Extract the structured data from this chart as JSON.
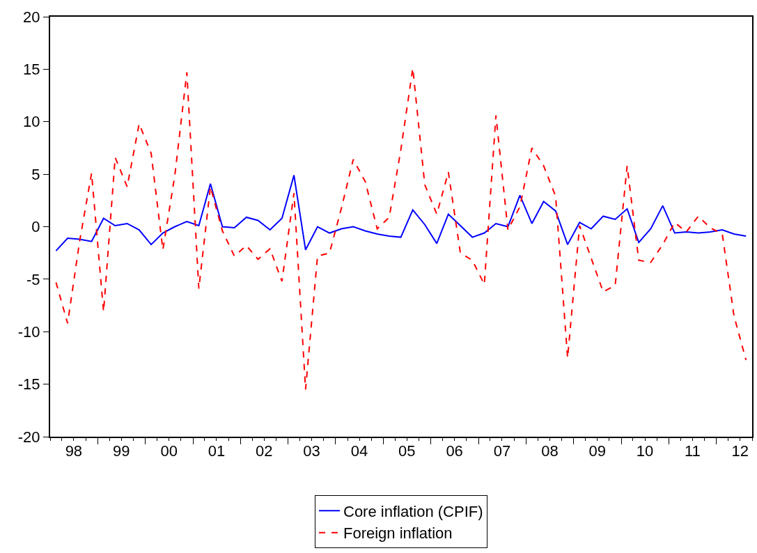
{
  "chart_data": {
    "type": "line",
    "x": [
      "1998-02-15",
      "1998-05-15",
      "1998-08-15",
      "1998-11-15",
      "1999-02-15",
      "1999-05-15",
      "1999-08-15",
      "1999-11-15",
      "2000-02-15",
      "2000-05-15",
      "2000-08-15",
      "2000-11-15",
      "2001-02-15",
      "2001-05-15",
      "2001-08-15",
      "2001-11-15",
      "2002-02-15",
      "2002-05-15",
      "2002-08-15",
      "2002-11-15",
      "2003-02-15",
      "2003-05-15",
      "2003-08-15",
      "2003-11-15",
      "2004-02-15",
      "2004-05-15",
      "2004-08-15",
      "2004-11-15",
      "2005-02-15",
      "2005-05-15",
      "2005-08-15",
      "2005-11-15",
      "2006-02-15",
      "2006-05-15",
      "2006-08-15",
      "2006-11-15",
      "2007-02-15",
      "2007-05-15",
      "2007-08-15",
      "2007-11-15",
      "2008-02-15",
      "2008-05-15",
      "2008-08-15",
      "2008-11-15",
      "2009-02-15",
      "2009-05-15",
      "2009-08-15",
      "2009-11-15",
      "2010-02-15",
      "2010-05-15",
      "2010-08-15",
      "2010-11-15",
      "2011-02-15",
      "2011-05-15",
      "2011-08-15",
      "2011-11-15",
      "2012-02-15",
      "2012-05-15",
      "2012-08-15"
    ],
    "series": [
      {
        "name": "Core inflation (CPIF)",
        "color": "#0000ff",
        "line_style": "solid",
        "values": [
          -2.3,
          -1.1,
          -1.2,
          -1.4,
          0.8,
          0.1,
          0.3,
          -0.3,
          -1.7,
          -0.6,
          0.0,
          0.5,
          0.1,
          4.1,
          0.0,
          -0.1,
          0.9,
          0.6,
          -0.3,
          0.8,
          4.9,
          -2.2,
          0.0,
          -0.6,
          -0.2,
          0.0,
          -0.4,
          -0.7,
          -0.9,
          -1.0,
          1.6,
          0.2,
          -1.6,
          1.2,
          0.1,
          -1.0,
          -0.6,
          0.3,
          0.0,
          3.0,
          0.3,
          2.4,
          1.5,
          -1.7,
          0.4,
          -0.2,
          1.0,
          0.7,
          1.7,
          -1.5,
          -0.2,
          2.0,
          -0.6,
          -0.5,
          -0.6,
          -0.5,
          -0.3,
          -0.7,
          -0.9
        ]
      },
      {
        "name": "Foreign inflation",
        "color": "#ff0000",
        "line_style": "dashed",
        "values": [
          -5.3,
          -9.2,
          -1.4,
          5.1,
          -8.1,
          6.6,
          3.8,
          9.8,
          7.0,
          -2.2,
          4.9,
          14.7,
          -5.9,
          3.8,
          -0.4,
          -2.8,
          -1.8,
          -3.1,
          -2.1,
          -5.2,
          3.2,
          -15.5,
          -2.8,
          -2.5,
          1.8,
          6.4,
          4.3,
          -0.2,
          0.9,
          7.3,
          15.1,
          4.0,
          1.2,
          5.2,
          -2.5,
          -3.2,
          -5.5,
          10.6,
          -0.3,
          1.9,
          7.5,
          5.8,
          2.9,
          -12.5,
          0.1,
          -3.0,
          -6.2,
          -5.6,
          5.8,
          -3.2,
          -3.4,
          -1.7,
          0.4,
          -0.5,
          1.0,
          -0.1,
          -0.7,
          -8.5,
          -12.7
        ]
      }
    ],
    "xlim": [
      "1998-01-01",
      "2012-10-01"
    ],
    "xticks": [
      {
        "value": "1998-07-01",
        "label": "98"
      },
      {
        "value": "1999-01-01",
        "label": null
      },
      {
        "value": "1999-07-01",
        "label": "99"
      },
      {
        "value": "2000-01-01",
        "label": null
      },
      {
        "value": "2000-07-01",
        "label": "00"
      },
      {
        "value": "2001-01-01",
        "label": null
      },
      {
        "value": "2001-07-01",
        "label": "01"
      },
      {
        "value": "2002-01-01",
        "label": null
      },
      {
        "value": "2002-07-01",
        "label": "02"
      },
      {
        "value": "2003-01-01",
        "label": null
      },
      {
        "value": "2003-07-01",
        "label": "03"
      },
      {
        "value": "2004-01-01",
        "label": null
      },
      {
        "value": "2004-07-01",
        "label": "04"
      },
      {
        "value": "2005-01-01",
        "label": null
      },
      {
        "value": "2005-07-01",
        "label": "05"
      },
      {
        "value": "2006-01-01",
        "label": null
      },
      {
        "value": "2006-07-01",
        "label": "06"
      },
      {
        "value": "2007-01-01",
        "label": null
      },
      {
        "value": "2007-07-01",
        "label": "07"
      },
      {
        "value": "2008-01-01",
        "label": null
      },
      {
        "value": "2008-07-01",
        "label": "08"
      },
      {
        "value": "2009-01-01",
        "label": null
      },
      {
        "value": "2009-07-01",
        "label": "09"
      },
      {
        "value": "2010-01-01",
        "label": null
      },
      {
        "value": "2010-07-01",
        "label": "10"
      },
      {
        "value": "2011-01-01",
        "label": null
      },
      {
        "value": "2011-07-01",
        "label": "11"
      },
      {
        "value": "2012-01-01",
        "label": null
      },
      {
        "value": "2012-07-01",
        "label": "12"
      }
    ],
    "ylim": [
      -20,
      20
    ],
    "yticks": [
      -20,
      -15,
      -10,
      -5,
      0,
      5,
      10,
      15,
      20
    ],
    "grid": false,
    "legend": "bottom",
    "marker": "none"
  }
}
